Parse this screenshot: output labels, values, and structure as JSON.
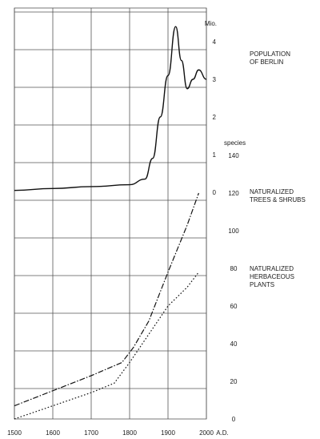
{
  "chart_data": {
    "type": "line",
    "x_ticks": [
      "1500",
      "1600",
      "1700",
      "1800",
      "1900",
      "2000"
    ],
    "x_unit": "A.D.",
    "xlim": [
      1500,
      2000
    ],
    "population_axis": {
      "unit": "Mio.",
      "ticks": [
        "0",
        "1",
        "2",
        "3",
        "4"
      ],
      "ylim": [
        0,
        4.5
      ]
    },
    "species_axis": {
      "unit": "species",
      "ticks": [
        "0",
        "20",
        "40",
        "60",
        "80",
        "100",
        "120",
        "140"
      ],
      "ylim": [
        0,
        120
      ]
    },
    "series": [
      {
        "name": "POPULATION OF BERLIN",
        "label_lines": [
          "POPULATION",
          "OF BERLIN"
        ],
        "axis": "population",
        "style": "solid",
        "x": [
          1500,
          1600,
          1700,
          1800,
          1840,
          1860,
          1880,
          1900,
          1920,
          1935,
          1950,
          1965,
          1980,
          2000
        ],
        "y": [
          0.05,
          0.1,
          0.15,
          0.2,
          0.35,
          0.9,
          2.0,
          3.1,
          4.4,
          3.5,
          2.75,
          3.0,
          3.25,
          3.0
        ]
      },
      {
        "name": "NATURALIZED TREES & SHRUBS",
        "label_lines": [
          "NATURALIZED",
          "TREES & SHRUBS"
        ],
        "axis": "species",
        "style": "dashdot",
        "x": [
          1500,
          1600,
          1700,
          1780,
          1810,
          1850,
          1900,
          1950,
          1980
        ],
        "y": [
          7,
          15,
          23,
          30,
          38,
          52,
          78,
          103,
          120
        ]
      },
      {
        "name": "NATURALIZED HERBACEOUS PLANTS",
        "label_lines": [
          "NATURALIZED",
          "HERBACEOUS",
          "PLANTS"
        ],
        "axis": "species",
        "style": "dotted",
        "x": [
          1500,
          1600,
          1700,
          1760,
          1800,
          1850,
          1900,
          1950,
          1980
        ],
        "y": [
          0,
          7,
          14,
          19,
          30,
          45,
          60,
          70,
          78
        ]
      }
    ]
  }
}
